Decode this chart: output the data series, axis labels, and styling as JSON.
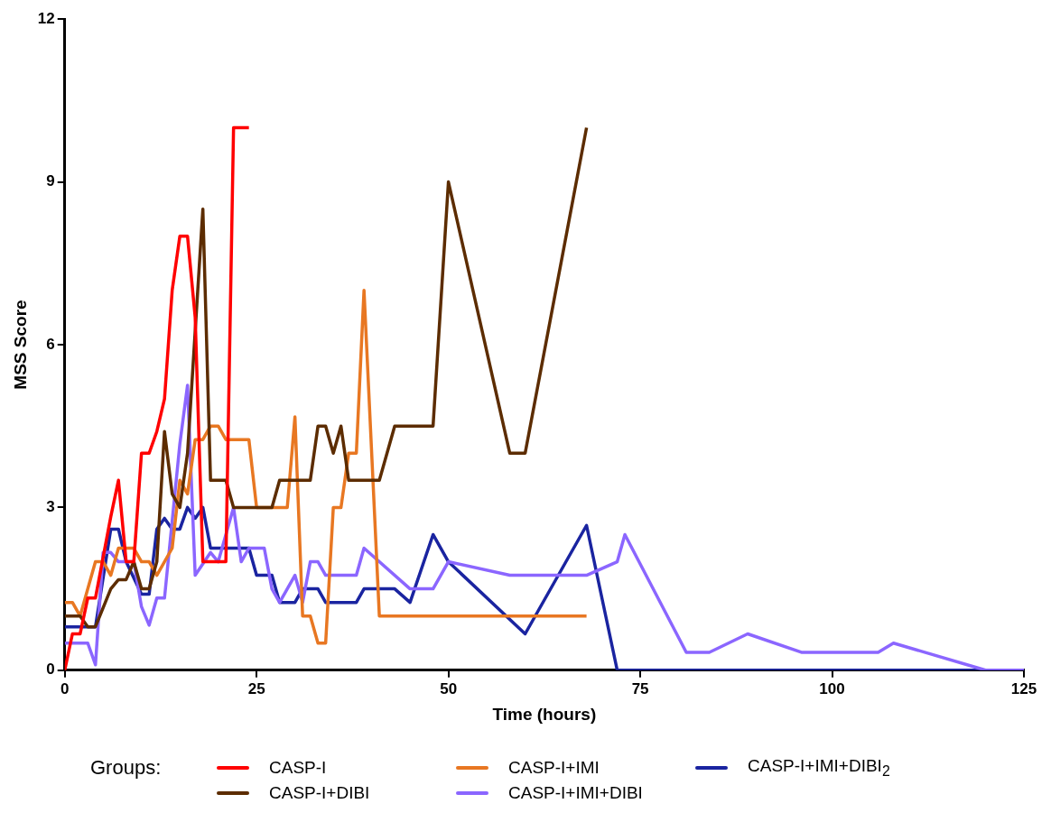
{
  "chart_data": {
    "type": "line",
    "xlabel": "Time (hours)",
    "ylabel": "MSS Score",
    "legend_title": "Groups:",
    "legend": "bottom",
    "grid": false,
    "xlim": [
      0,
      125
    ],
    "xticks": [
      0,
      25,
      50,
      75,
      100,
      125
    ],
    "ylim": [
      0,
      12
    ],
    "yticks": [
      0,
      3,
      6,
      9,
      12
    ],
    "series": [
      {
        "name": "CASP-I",
        "color": "#ff0000",
        "x": [
          0,
          1,
          2,
          3,
          4,
          6,
          7,
          8,
          9,
          10,
          11,
          12,
          13,
          14,
          15,
          16,
          17,
          18,
          21,
          22,
          24
        ],
        "values": [
          0,
          0.67,
          0.67,
          1.33,
          1.33,
          2.83,
          3.5,
          2,
          2,
          4,
          4,
          4.4,
          5,
          7,
          8,
          8,
          6.5,
          2,
          2,
          10,
          10
        ]
      },
      {
        "name": "CASP-I+DIBI",
        "color": "#5c2c00",
        "x": [
          0,
          2,
          3,
          4,
          6,
          7,
          8,
          9,
          10,
          11,
          12,
          13,
          14,
          15,
          16,
          18,
          19,
          21,
          22,
          27,
          28,
          32,
          33,
          34,
          35,
          36,
          37,
          41,
          43,
          48,
          50,
          58,
          60,
          68
        ],
        "values": [
          1,
          1,
          0.8,
          0.8,
          1.5,
          1.67,
          1.67,
          2,
          1.5,
          1.5,
          2,
          4.4,
          3.25,
          3,
          4,
          8.5,
          3.5,
          3.5,
          3,
          3,
          3.5,
          3.5,
          4.5,
          4.5,
          4,
          4.5,
          3.5,
          3.5,
          4.5,
          4.5,
          9,
          4,
          4,
          10
        ]
      },
      {
        "name": "CASP-I+IMI",
        "color": "#e87722",
        "x": [
          0,
          1,
          2,
          4,
          5,
          6,
          7,
          9,
          10,
          11,
          12,
          14,
          15,
          16,
          17,
          18,
          19,
          20,
          21,
          24,
          25,
          29,
          30,
          31,
          32,
          33,
          34,
          35,
          36,
          37,
          38,
          39,
          41,
          68
        ],
        "values": [
          1.25,
          1.25,
          1,
          2,
          2,
          1.75,
          2.25,
          2.25,
          2,
          2,
          1.75,
          2.25,
          3.5,
          3.25,
          4.25,
          4.25,
          4.5,
          4.5,
          4.25,
          4.25,
          3,
          3,
          4.67,
          1,
          1,
          0.5,
          0.5,
          3,
          3,
          4,
          4,
          7,
          1,
          1
        ]
      },
      {
        "name": "CASP-I+IMI+DIBI",
        "color": "#8b66ff",
        "x": [
          0,
          3,
          4,
          5,
          6,
          7,
          9,
          10,
          11,
          12,
          13,
          15,
          16,
          17,
          19,
          20,
          22,
          23,
          24,
          26,
          27,
          28,
          30,
          31,
          32,
          33,
          34,
          38,
          39,
          45,
          47,
          48,
          50,
          58,
          68,
          72,
          73,
          81,
          84,
          89,
          96,
          106,
          108,
          120,
          125
        ],
        "values": [
          0.5,
          0.5,
          0.1,
          2.17,
          2.17,
          2,
          2,
          1.17,
          0.83,
          1.33,
          1.33,
          4.17,
          5.25,
          1.75,
          2.17,
          2,
          3,
          2,
          2.25,
          2.25,
          1.5,
          1.25,
          1.75,
          1.25,
          2,
          2,
          1.75,
          1.75,
          2.25,
          1.5,
          1.5,
          1.5,
          2,
          1.75,
          1.75,
          2,
          2.5,
          0.33,
          0.33,
          0.67,
          0.33,
          0.33,
          0.5,
          0,
          0
        ]
      },
      {
        "name": "CASP-I+IMI+DIBI$_{2}$",
        "color": "#1a24a0",
        "x": [
          0,
          4,
          6,
          7,
          8,
          10,
          11,
          12,
          13,
          14,
          15,
          16,
          17,
          18,
          19,
          24,
          25,
          27,
          28,
          30,
          31,
          33,
          34,
          38,
          39,
          43,
          45,
          48,
          50,
          60,
          68,
          72,
          125
        ],
        "values": [
          0.8,
          0.8,
          2.6,
          2.6,
          2,
          1.4,
          1.4,
          2.6,
          2.8,
          2.6,
          2.6,
          3,
          2.8,
          3,
          2.25,
          2.25,
          1.75,
          1.75,
          1.25,
          1.25,
          1.5,
          1.5,
          1.25,
          1.25,
          1.5,
          1.5,
          1.25,
          2.5,
          2,
          0.67,
          2.67,
          0,
          0
        ]
      }
    ]
  }
}
